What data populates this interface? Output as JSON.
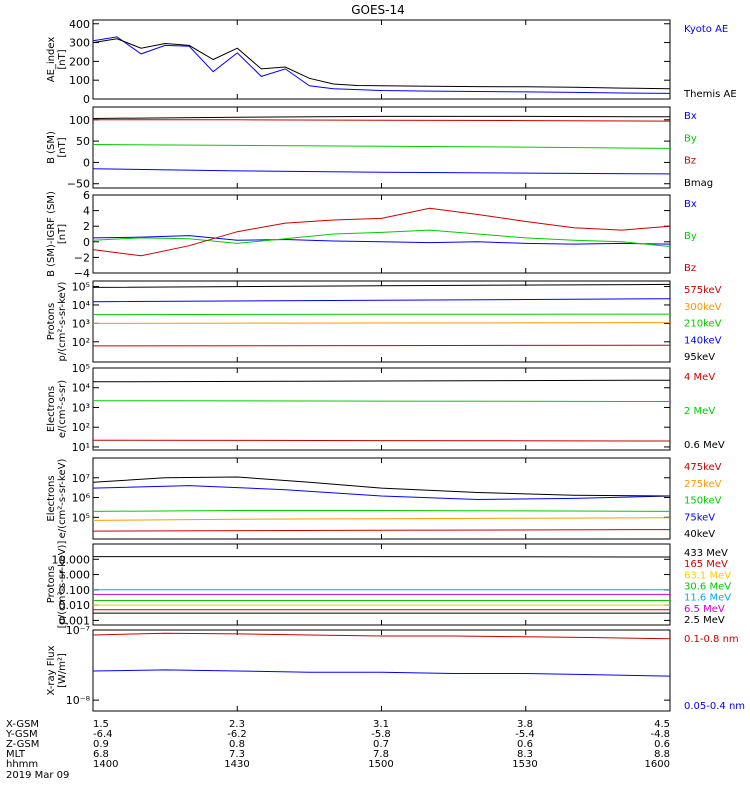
{
  "title": "GOES-14",
  "footer": {
    "row_labels": [
      "X-GSM",
      "Y-GSM",
      "Z-GSM",
      "MLT",
      "hhmm"
    ],
    "columns": [
      {
        "values": [
          "1.5",
          "-6.4",
          "0.9",
          "6.8",
          "1400"
        ]
      },
      {
        "values": [
          "2.3",
          "-6.2",
          "0.8",
          "7.3",
          "1430"
        ]
      },
      {
        "values": [
          "3.1",
          "-5.8",
          "0.7",
          "7.8",
          "1500"
        ]
      },
      {
        "values": [
          "3.8",
          "-5.4",
          "0.6",
          "8.3",
          "1530"
        ]
      },
      {
        "values": [
          "4.5",
          "-4.8",
          "0.6",
          "8.8",
          "1600"
        ]
      }
    ],
    "date": "2019 Mar 09"
  },
  "chart_data": [
    {
      "type": "line",
      "panel": "ae",
      "ylabel": [
        "AE_index",
        "[nT]"
      ],
      "ylim": [
        0,
        420
      ],
      "yticks": [
        {
          "v": 0,
          "t": "0"
        },
        {
          "v": 100,
          "t": "100"
        },
        {
          "v": 200,
          "t": "200"
        },
        {
          "v": 300,
          "t": "300"
        },
        {
          "v": 400,
          "t": "400"
        }
      ],
      "series": [
        {
          "name": "Kyoto AE",
          "color": "#0000ff",
          "x": [
            0,
            5,
            10,
            15,
            20,
            25,
            30,
            35,
            40,
            45,
            50,
            55,
            60,
            70,
            80,
            90,
            100,
            110,
            120
          ],
          "y": [
            310,
            330,
            240,
            285,
            280,
            145,
            245,
            120,
            160,
            70,
            55,
            50,
            45,
            42,
            40,
            38,
            35,
            32,
            30
          ]
        },
        {
          "name": "Themis AE",
          "color": "#000000",
          "x": [
            0,
            5,
            10,
            15,
            20,
            25,
            30,
            35,
            40,
            45,
            50,
            55,
            60,
            70,
            80,
            90,
            100,
            110,
            120
          ],
          "y": [
            300,
            320,
            270,
            295,
            285,
            210,
            270,
            160,
            170,
            110,
            80,
            72,
            70,
            68,
            66,
            65,
            62,
            58,
            55
          ]
        }
      ]
    },
    {
      "type": "line",
      "panel": "b_sm",
      "ylabel": [
        "B (SM)",
        "[nT]"
      ],
      "ylim": [
        -60,
        130
      ],
      "yticks": [
        {
          "v": -50,
          "t": "−50"
        },
        {
          "v": 0,
          "t": "0"
        },
        {
          "v": 50,
          "t": "50"
        },
        {
          "v": 100,
          "t": "100"
        }
      ],
      "series": [
        {
          "name": "Bx",
          "color": "#0000ff",
          "x": [
            0,
            30,
            60,
            90,
            120
          ],
          "y": [
            -15,
            -20,
            -23,
            -25,
            -27
          ]
        },
        {
          "name": "By",
          "color": "#00cc00",
          "x": [
            0,
            30,
            60,
            90,
            120
          ],
          "y": [
            42,
            40,
            38,
            36,
            33
          ]
        },
        {
          "name": "Bz",
          "color": "#cc0000",
          "x": [
            0,
            30,
            60,
            90,
            120
          ],
          "y": [
            100,
            100,
            99,
            98,
            97
          ]
        },
        {
          "name": "Bmag",
          "color": "#000000",
          "x": [
            0,
            30,
            60,
            90,
            120
          ],
          "y": [
            103,
            106,
            108,
            108,
            107
          ]
        }
      ]
    },
    {
      "type": "line",
      "panel": "b_igrf",
      "ylabel": [
        "B (SM)-IGRF (SM)",
        "[nT]"
      ],
      "ylim": [
        -4,
        6
      ],
      "yticks": [
        {
          "v": -4,
          "t": "−4"
        },
        {
          "v": -2,
          "t": "−2"
        },
        {
          "v": 0,
          "t": "0"
        },
        {
          "v": 2,
          "t": "2"
        },
        {
          "v": 4,
          "t": "4"
        },
        {
          "v": 6,
          "t": "6"
        }
      ],
      "series": [
        {
          "name": "Bx",
          "color": "#0000ff",
          "x": [
            0,
            10,
            20,
            30,
            40,
            50,
            60,
            70,
            80,
            90,
            100,
            110,
            120
          ],
          "y": [
            0.5,
            0.6,
            0.8,
            0.2,
            0.3,
            0.1,
            0.0,
            -0.1,
            0.0,
            -0.2,
            -0.3,
            -0.2,
            -0.3
          ]
        },
        {
          "name": "By",
          "color": "#00cc00",
          "x": [
            0,
            10,
            20,
            30,
            40,
            50,
            60,
            70,
            80,
            90,
            100,
            110,
            120
          ],
          "y": [
            0.2,
            0.5,
            0.4,
            -0.2,
            0.4,
            1.0,
            1.2,
            1.5,
            1.0,
            0.5,
            0.2,
            0.0,
            -0.6
          ]
        },
        {
          "name": "Bz",
          "color": "#cc0000",
          "x": [
            0,
            10,
            20,
            30,
            40,
            50,
            60,
            70,
            80,
            90,
            100,
            110,
            120
          ],
          "y": [
            -1.0,
            -1.8,
            -0.5,
            1.3,
            2.4,
            2.8,
            3.0,
            4.3,
            3.5,
            2.6,
            1.8,
            1.5,
            2.0
          ]
        }
      ]
    },
    {
      "type": "line",
      "panel": "protons_lo",
      "log": true,
      "ylabel": [
        "Protons",
        "p/(cm²-s-sr-keV)"
      ],
      "ylim": [
        8,
        200000
      ],
      "yticks": [
        {
          "v": 100,
          "t": "10²"
        },
        {
          "v": 1000,
          "t": "10³"
        },
        {
          "v": 10000,
          "t": "10⁴"
        },
        {
          "v": 100000,
          "t": "10⁵"
        }
      ],
      "series": [
        {
          "name": "575keV",
          "color": "#cc0000",
          "x": [
            0,
            60,
            120
          ],
          "y": [
            60,
            62,
            65
          ]
        },
        {
          "name": "300keV",
          "color": "#ff9900",
          "x": [
            0,
            60,
            120
          ],
          "y": [
            1000,
            1050,
            1100
          ]
        },
        {
          "name": "210keV",
          "color": "#00cc00",
          "x": [
            0,
            60,
            120
          ],
          "y": [
            3000,
            3100,
            3200
          ]
        },
        {
          "name": "140keV",
          "color": "#0000ff",
          "x": [
            0,
            60,
            120
          ],
          "y": [
            15000,
            18000,
            22000
          ]
        },
        {
          "name": "95keV",
          "color": "#000000",
          "x": [
            0,
            60,
            120
          ],
          "y": [
            90000,
            110000,
            130000
          ]
        }
      ]
    },
    {
      "type": "line",
      "panel": "electrons_mev",
      "log": true,
      "ylabel": [
        "Electrons",
        "e/(cm²-s-sr)"
      ],
      "ylim": [
        7,
        100000
      ],
      "yticks": [
        {
          "v": 10,
          "t": "10¹"
        },
        {
          "v": 100,
          "t": "10²"
        },
        {
          "v": 1000,
          "t": "10³"
        },
        {
          "v": 10000,
          "t": "10⁴"
        },
        {
          "v": 100000,
          "t": "10⁵"
        }
      ],
      "series": [
        {
          "name": "4 MeV",
          "color": "#cc0000",
          "x": [
            0,
            60,
            120
          ],
          "y": [
            22,
            21,
            20
          ]
        },
        {
          "name": "2 MeV",
          "color": "#00cc00",
          "x": [
            0,
            60,
            120
          ],
          "y": [
            2200,
            2100,
            2000
          ]
        },
        {
          "name": "0.6 MeV",
          "color": "#000000",
          "x": [
            0,
            60,
            120
          ],
          "y": [
            20000,
            22000,
            24000
          ]
        }
      ]
    },
    {
      "type": "line",
      "panel": "electrons_kev",
      "log": true,
      "ylabel": [
        "Electrons",
        "e/(cm²-s-sr-keV)"
      ],
      "ylim": [
        8000,
        100000000
      ],
      "yticks": [
        {
          "v": 100000,
          "t": "10⁵"
        },
        {
          "v": 1000000,
          "t": "10⁶"
        },
        {
          "v": 10000000,
          "t": "10⁷"
        }
      ],
      "series": [
        {
          "name": "475keV",
          "color": "#cc0000",
          "x": [
            0,
            60,
            120
          ],
          "y": [
            20000,
            22000,
            24000
          ]
        },
        {
          "name": "275keV",
          "color": "#ff9900",
          "x": [
            0,
            30,
            60,
            90,
            120
          ],
          "y": [
            70000,
            80000,
            85000,
            90000,
            95000
          ]
        },
        {
          "name": "150keV",
          "color": "#00cc00",
          "x": [
            0,
            30,
            60,
            90,
            120
          ],
          "y": [
            200000,
            220000,
            220000,
            210000,
            200000
          ]
        },
        {
          "name": "75keV",
          "color": "#0000ff",
          "x": [
            0,
            20,
            40,
            60,
            80,
            100,
            120
          ],
          "y": [
            3000000,
            4000000,
            2500000,
            1200000,
            800000,
            900000,
            1200000
          ]
        },
        {
          "name": "40keV",
          "color": "#000000",
          "x": [
            0,
            15,
            30,
            45,
            60,
            80,
            100,
            120
          ],
          "y": [
            6000000,
            10000000,
            11000000,
            6000000,
            3000000,
            1800000,
            1300000,
            1200000
          ]
        }
      ]
    },
    {
      "type": "line",
      "panel": "protons_mev",
      "log": true,
      "ylabel": [
        "Protons",
        "[p/(cm²-s-sr-keV)]"
      ],
      "ylim": [
        0.0005,
        100
      ],
      "yticks": [
        {
          "v": 0.001,
          "t": "0.001"
        },
        {
          "v": 0.01,
          "t": "0.010"
        },
        {
          "v": 0.1,
          "t": "0.100"
        },
        {
          "v": 1,
          "t": "1.000"
        },
        {
          "v": 10,
          "t": "10.000"
        }
      ],
      "series": [
        {
          "name": "433 MeV",
          "color": "#000000",
          "x": [
            0,
            60,
            120
          ],
          "y": [
            15,
            15,
            14
          ]
        },
        {
          "name": "165 MeV",
          "color": "#cc0000",
          "x": [
            0,
            60,
            120
          ],
          "y": [
            0.005,
            0.005,
            0.005
          ]
        },
        {
          "name": "63.1 MeV",
          "color": "#ffcc00",
          "x": [
            0,
            60,
            120
          ],
          "y": [
            0.01,
            0.01,
            0.01
          ]
        },
        {
          "name": "30.6 MeV",
          "color": "#00cc00",
          "x": [
            0,
            60,
            120
          ],
          "y": [
            0.02,
            0.02,
            0.02
          ]
        },
        {
          "name": "11.6 MeV",
          "color": "#00aaff",
          "x": [
            0,
            60,
            120
          ],
          "y": [
            0.1,
            0.1,
            0.1
          ]
        },
        {
          "name": "6.5 MeV",
          "color": "#cc00cc",
          "x": [
            0,
            60,
            120
          ],
          "y": [
            0.05,
            0.05,
            0.05
          ]
        },
        {
          "name": "2.5 MeV",
          "color": "#000000",
          "x": [
            0,
            60,
            120
          ],
          "y": [
            0.003,
            0.003,
            0.003
          ]
        }
      ]
    },
    {
      "type": "line",
      "panel": "xray",
      "log": true,
      "ylabel": [
        "X-ray Flux",
        "[W/m²]"
      ],
      "ylim": [
        7e-09,
        1e-07
      ],
      "yticks": [
        {
          "v": 1e-08,
          "t": "10⁻⁸"
        },
        {
          "v": 1e-07,
          "t": "10⁻⁷"
        }
      ],
      "series": [
        {
          "name": "0.1-0.8 nm",
          "color": "#cc0000",
          "x": [
            0,
            15,
            30,
            45,
            60,
            75,
            90,
            105,
            120
          ],
          "y": [
            8.5e-08,
            9e-08,
            8.8e-08,
            8.5e-08,
            8.2e-08,
            8.2e-08,
            8e-08,
            7.8e-08,
            7.5e-08
          ]
        },
        {
          "name": "0.05-0.4 nm",
          "color": "#0000ff",
          "x": [
            0,
            15,
            30,
            45,
            60,
            75,
            90,
            105,
            120
          ],
          "y": [
            2.6e-08,
            2.7e-08,
            2.6e-08,
            2.5e-08,
            2.5e-08,
            2.4e-08,
            2.4e-08,
            2.3e-08,
            2.2e-08
          ]
        }
      ]
    }
  ]
}
